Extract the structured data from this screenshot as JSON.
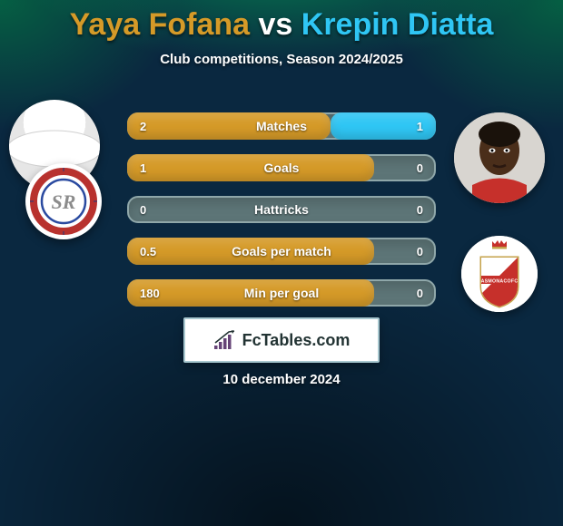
{
  "title_player1": "Yaya Fofana",
  "title_vs": " vs ",
  "title_player2": "Krepin Diatta",
  "title_color1": "#d59a28",
  "title_color2": "#2fc6f4",
  "subtitle": "Club competitions, Season 2024/2025",
  "rows": [
    {
      "label": "Matches",
      "left": "2",
      "right": "1",
      "left_pct": 66,
      "right_pct": 34
    },
    {
      "label": "Goals",
      "left": "1",
      "right": "0",
      "left_pct": 80,
      "right_pct": 0
    },
    {
      "label": "Hattricks",
      "left": "0",
      "right": "0",
      "left_pct": 0,
      "right_pct": 0
    },
    {
      "label": "Goals per match",
      "left": "0.5",
      "right": "0",
      "left_pct": 80,
      "right_pct": 0
    },
    {
      "label": "Min per goal",
      "left": "180",
      "right": "0",
      "left_pct": 80,
      "right_pct": 0
    }
  ],
  "fill_colors": {
    "left": "#d59a28",
    "right": "#2fc6f4"
  },
  "club_left": {
    "badge_bg": "#ffffff",
    "ring_outer": "#b8322e",
    "ring_inner": "#ffffff",
    "initials": "SR",
    "initials_color": "#8c8c8c"
  },
  "club_right": {
    "badge_bg": "#ffffff",
    "shield_border": "#c4a24a",
    "stripe_red": "#c6302b",
    "stripe_white": "#ffffff",
    "crown": "#c6302b",
    "band_text": "ASMONACOFC",
    "band_text_color": "#ffffff"
  },
  "branding": "FcTables.com",
  "date": "10 december 2024",
  "avatar_right": {
    "skin": "#4a2e1a",
    "shirt": "#c6302b"
  }
}
